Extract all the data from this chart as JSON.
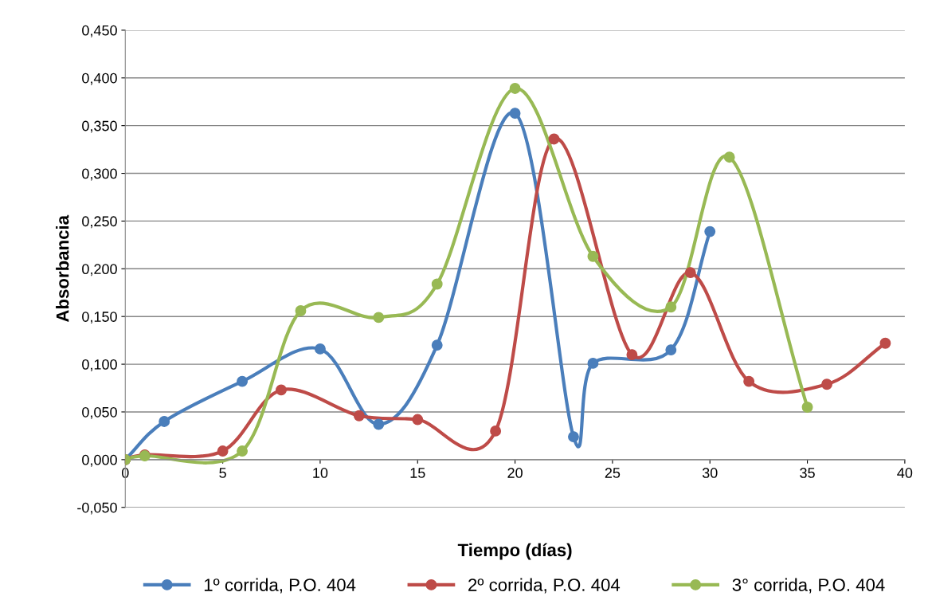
{
  "chart_data": {
    "type": "line",
    "xlabel": "Tiempo (días)",
    "ylabel": "Absorbancia",
    "series": [
      {
        "name": "1º corrida, P.O. 404",
        "color": "#4a7ebb",
        "x": [
          0,
          2,
          6,
          10,
          13,
          16,
          20,
          23,
          24,
          28,
          30
        ],
        "values": [
          0.0,
          0.04,
          0.082,
          0.116,
          0.037,
          0.12,
          0.363,
          0.024,
          0.101,
          0.115,
          0.239
        ]
      },
      {
        "name": "2º corrida, P.O. 404",
        "color": "#be4b48",
        "x": [
          0,
          1,
          5,
          8,
          12,
          15,
          19,
          22,
          26,
          29,
          32,
          36,
          39
        ],
        "values": [
          0.0,
          0.005,
          0.009,
          0.073,
          0.046,
          0.042,
          0.03,
          0.336,
          0.11,
          0.196,
          0.082,
          0.079,
          0.122
        ]
      },
      {
        "name": "3° corrida, P.O. 404",
        "color": "#98b954",
        "x": [
          0,
          1,
          6,
          9,
          13,
          16,
          20,
          24,
          28,
          31,
          35
        ],
        "values": [
          0.0,
          0.004,
          0.009,
          0.156,
          0.149,
          0.184,
          0.389,
          0.213,
          0.16,
          0.317,
          0.055
        ]
      }
    ],
    "xlim": [
      0,
      40
    ],
    "xticks": [
      0,
      5,
      10,
      15,
      20,
      25,
      30,
      35,
      40
    ],
    "ylim": [
      -0.05,
      0.45
    ],
    "yticks": [
      {
        "value": -0.05,
        "label": "-0,050"
      },
      {
        "value": 0,
        "label": "0,000"
      },
      {
        "value": 0.05,
        "label": "0,050"
      },
      {
        "value": 0.1,
        "label": "0,100"
      },
      {
        "value": 0.15,
        "label": "0,150"
      },
      {
        "value": 0.2,
        "label": "0,200"
      },
      {
        "value": 0.25,
        "label": "0,250"
      },
      {
        "value": 0.3,
        "label": "0,300"
      },
      {
        "value": 0.35,
        "label": "0,350"
      },
      {
        "value": 0.4,
        "label": "0,400"
      },
      {
        "value": 0.45,
        "label": "0,450"
      }
    ],
    "grid": "y",
    "legend": "bottom",
    "marker": "circle",
    "line_style": "solid"
  }
}
